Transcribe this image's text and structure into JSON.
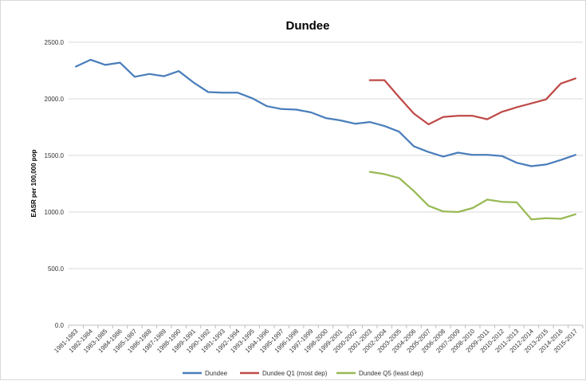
{
  "chart_data": {
    "type": "line",
    "title": "Dundee",
    "xlabel": "",
    "ylabel": "EASR per 100,000 pop",
    "ylim": [
      0,
      2500
    ],
    "yticks": [
      "0.0",
      "500.0",
      "1000.0",
      "1500.0",
      "2000.0",
      "2500.0"
    ],
    "grid": "horizontal",
    "legend_position": "bottom",
    "categories": [
      "1981-1983",
      "1982-1984",
      "1983-1985",
      "1984-1986",
      "1985-1987",
      "1986-1988",
      "1987-1989",
      "1988-1990",
      "1989-1991",
      "1990-1992",
      "1991-1993",
      "1992-1994",
      "1993-1995",
      "1994-1996",
      "1995-1997",
      "1996-1998",
      "1997-1999",
      "1998-2000",
      "1999-2001",
      "2000-2002",
      "2001-2003",
      "2002-2004",
      "2003-2005",
      "2004-2006",
      "2005-2007",
      "2006-2008",
      "2007-2009",
      "2008-2010",
      "2009-2011",
      "2010-2012",
      "2011-2013",
      "2012-2014",
      "2013-2015",
      "2014-2016",
      "2015-2017"
    ],
    "series": [
      {
        "name": "Dundee",
        "color": "#4a7ebb",
        "values": [
          2285,
          2345,
          2300,
          2320,
          2195,
          2220,
          2200,
          2245,
          2145,
          2060,
          2055,
          2055,
          2005,
          1935,
          1910,
          1905,
          1880,
          1830,
          1810,
          1780,
          1795,
          1760,
          1710,
          1580,
          1530,
          1490,
          1525,
          1505,
          1505,
          1495,
          1435,
          1405,
          1420,
          1460,
          1505
        ]
      },
      {
        "name": "Dundee Q1 (most dep)",
        "color": "#be4b48",
        "values": [
          null,
          null,
          null,
          null,
          null,
          null,
          null,
          null,
          null,
          null,
          null,
          null,
          null,
          null,
          null,
          null,
          null,
          null,
          null,
          null,
          2165,
          2165,
          2015,
          1870,
          1775,
          1840,
          1850,
          1850,
          1820,
          1885,
          1925,
          1960,
          1995,
          2135,
          2180
        ]
      },
      {
        "name": "Dundee Q5 (least dep)",
        "color": "#98b954",
        "values": [
          null,
          null,
          null,
          null,
          null,
          null,
          null,
          null,
          null,
          null,
          null,
          null,
          null,
          null,
          null,
          null,
          null,
          null,
          null,
          null,
          1355,
          1335,
          1300,
          1185,
          1055,
          1005,
          1000,
          1035,
          1110,
          1090,
          1085,
          935,
          945,
          940,
          980
        ]
      }
    ]
  }
}
